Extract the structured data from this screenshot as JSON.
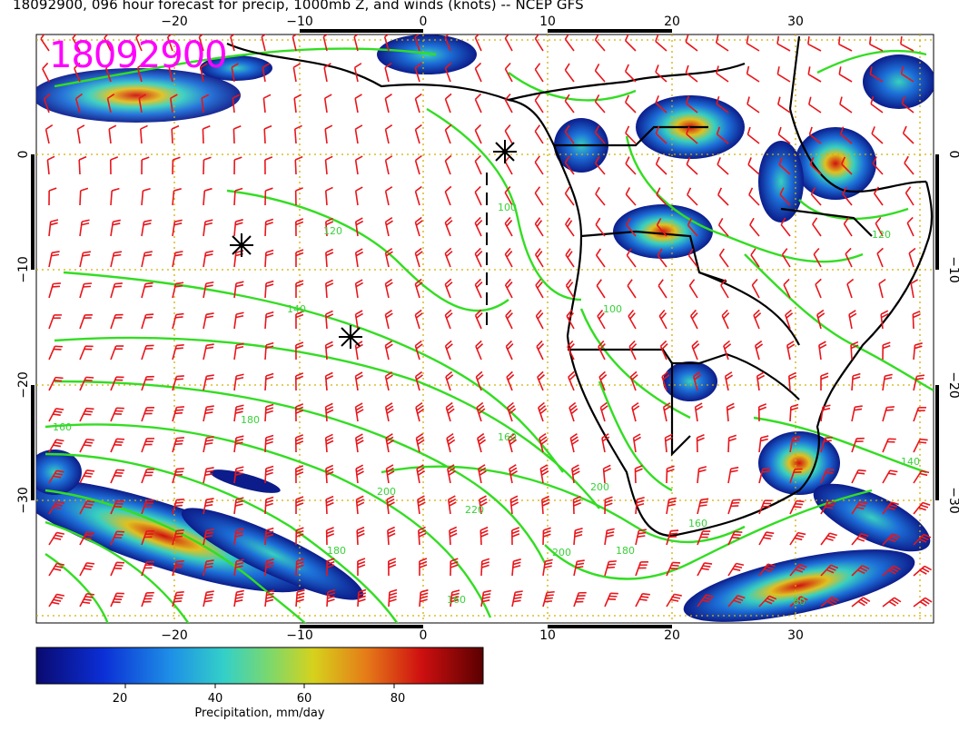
{
  "title": "18092900, 096 hour forecast for precip, 1000mb Z, and winds (knots) -- NCEP GFS",
  "stamp": "18092900",
  "axes": {
    "x_ticks": [
      "−20",
      "−10",
      "0",
      "10",
      "20",
      "30"
    ],
    "y_ticks": [
      "0",
      "−10",
      "−20",
      "−30"
    ]
  },
  "colorbar": {
    "label": "Precipitation, mm/day",
    "ticks": [
      "20",
      "40",
      "60",
      "80"
    ],
    "range": [
      0,
      100
    ]
  },
  "contour_labels": [
    "120",
    "140",
    "160",
    "180",
    "160",
    "200",
    "220",
    "200",
    "180",
    "160",
    "140",
    "120",
    "100",
    "100",
    "80",
    "160",
    "180",
    "200"
  ],
  "colors": {
    "precip_low": "#0a1a8c",
    "precip_mid": "#2fd3c8",
    "precip_high": "#c40000",
    "contours": "#33dd22",
    "wind_barbs": "#e8151b",
    "grid": "#c8a800",
    "stamp": "#ff00ff"
  }
}
